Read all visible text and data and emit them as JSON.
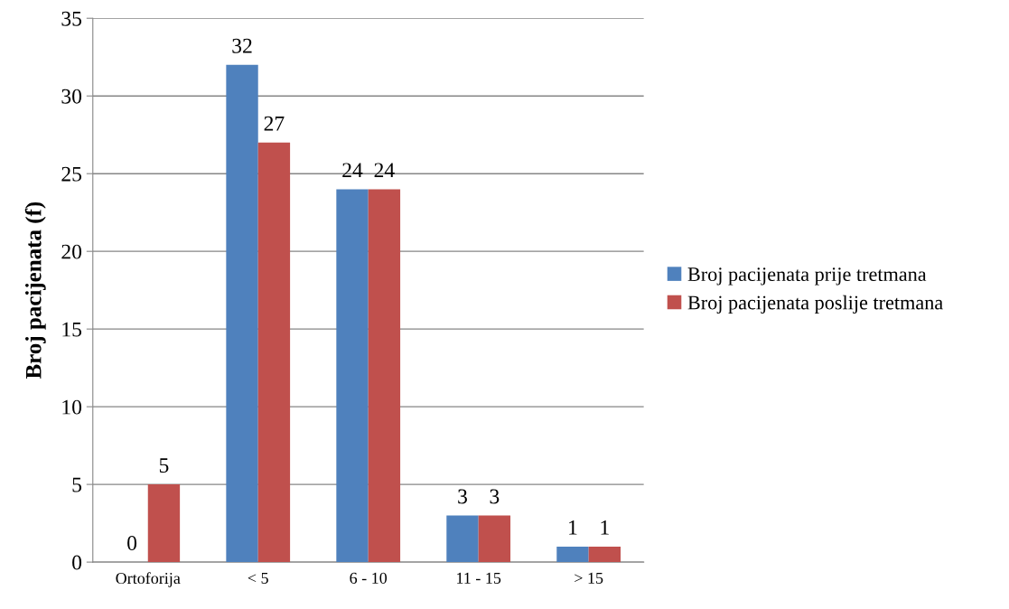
{
  "chart_data": {
    "type": "bar",
    "ylabel": "Broj pacijenata (f)",
    "categories": [
      "Ortoforija",
      "< 5",
      "6 - 10",
      "11 - 15",
      "> 15"
    ],
    "series": [
      {
        "name": "Broj pacijenata prije tretmana",
        "color": "#4f81bd",
        "values": [
          0,
          32,
          24,
          3,
          1
        ]
      },
      {
        "name": "Broj pacijenata poslije tretmana",
        "color": "#c0504d",
        "values": [
          5,
          27,
          24,
          3,
          1
        ]
      }
    ],
    "ylim": [
      0,
      35
    ],
    "yticks": [
      0,
      5,
      10,
      15,
      20,
      25,
      30,
      35
    ],
    "grid": "y",
    "legend": "right",
    "data_labels": true
  }
}
